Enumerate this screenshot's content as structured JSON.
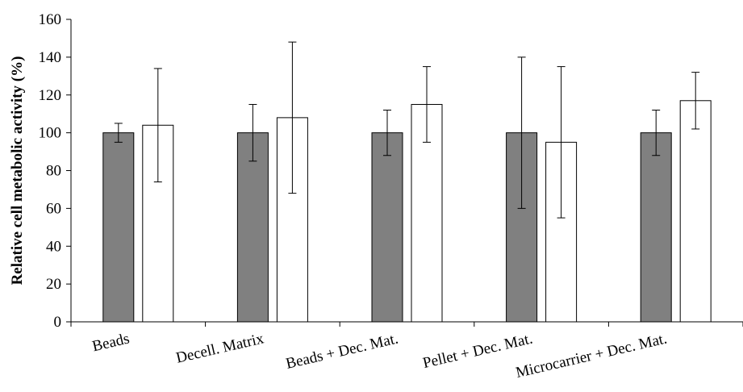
{
  "chart_data": {
    "type": "bar",
    "title": "",
    "xlabel": "",
    "ylabel": "Relative cell metabolic activity (%)",
    "ylim": [
      0,
      160
    ],
    "yticks": [
      0,
      20,
      40,
      60,
      80,
      100,
      120,
      140,
      160
    ],
    "grid": false,
    "legend": "none",
    "categories": [
      "Beads",
      "Decell. Matrix",
      "Beads + Dec. Mat.",
      "Pellet + Dec. Mat.",
      "Microcarrier + Dec. Mat."
    ],
    "series": [
      {
        "color": "#808080",
        "values": [
          100,
          100,
          100,
          100,
          100
        ],
        "errors": [
          5,
          15,
          12,
          40,
          12
        ]
      },
      {
        "color": "#ffffff",
        "values": [
          104,
          108,
          115,
          95,
          117
        ],
        "errors": [
          30,
          40,
          20,
          40,
          15
        ]
      }
    ]
  }
}
